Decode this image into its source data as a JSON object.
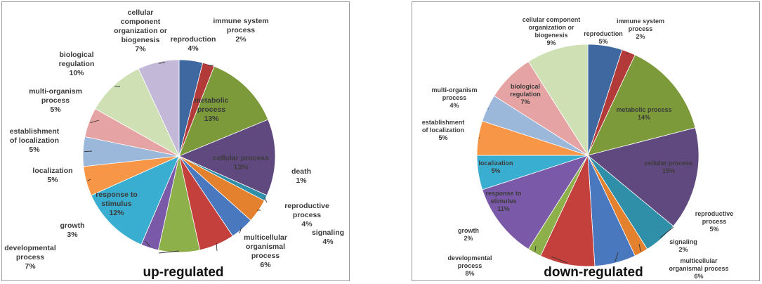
{
  "chart_data": [
    {
      "type": "pie",
      "title": "up-regulated",
      "categories": [
        "reproduction",
        "immune system process",
        "metabolic process",
        "cellular process",
        "death",
        "reproductive process",
        "signaling",
        "multicellular organismal process",
        "developmental process",
        "growth",
        "response to stimulus",
        "localization",
        "establishment of localization",
        "multi-organism process",
        "biological regulation",
        "cellular component organization or biogenesis"
      ],
      "values": [
        4,
        2,
        13,
        13,
        1,
        4,
        4,
        6,
        7,
        3,
        12,
        5,
        5,
        5,
        10,
        7
      ],
      "value_labels": [
        "4%",
        "2%",
        "13%",
        "13%",
        "1%",
        "4%",
        "4%",
        "6%",
        "7%",
        "3%",
        "12%",
        "5%",
        "5%",
        "5%",
        "10%",
        "7%"
      ],
      "colors": [
        "#3f67a0",
        "#b23a38",
        "#7c9a3a",
        "#60497f",
        "#2f8fa8",
        "#e4812e",
        "#4a78bf",
        "#c4403c",
        "#8db04a",
        "#7a5aa8",
        "#3aaed0",
        "#f79646",
        "#9bb7da",
        "#e6a3a3",
        "#cfe0b5",
        "#c3b8d8"
      ],
      "legend": "none (callout labels)"
    },
    {
      "type": "pie",
      "title": "down-regulated",
      "categories": [
        "reproduction",
        "immune system process",
        "metabolic process",
        "cellular process",
        "reproductive process",
        "signaling",
        "multicellular organismal process",
        "developmental process",
        "growth",
        "response to stimulus",
        "localization",
        "establishment of localization",
        "multi-organism process",
        "biological regulation",
        "cellular component organization or biogenesis"
      ],
      "values": [
        5,
        2,
        14,
        15,
        5,
        2,
        6,
        8,
        2,
        11,
        5,
        5,
        4,
        7,
        9
      ],
      "value_labels": [
        "5%",
        "2%",
        "14%",
        "15%",
        "5%",
        "2%",
        "6%",
        "8%",
        "2%",
        "11%",
        "5%",
        "5%",
        "4%",
        "7%",
        "9%"
      ],
      "colors": [
        "#3f67a0",
        "#b23a38",
        "#7c9a3a",
        "#60497f",
        "#2f8fa8",
        "#e4812e",
        "#4a78bf",
        "#c4403c",
        "#8db04a",
        "#7a5aa8",
        "#3aaed0",
        "#f79646",
        "#9bb7da",
        "#e6a3a3",
        "#cfe0b5"
      ],
      "legend": "none (callout labels)"
    }
  ],
  "labels_up": [
    [
      "reproduction",
      "4%"
    ],
    [
      "immune system",
      "process",
      "2%"
    ],
    [
      "metabolic",
      "process",
      "13%"
    ],
    [
      "cellular process",
      "13%"
    ],
    [
      "death",
      "1%"
    ],
    [
      "reproductive",
      "process",
      "4%"
    ],
    [
      "signaling",
      "4%"
    ],
    [
      "multicellular",
      "organismal",
      "process",
      "6%"
    ],
    [
      "developmental",
      "process",
      "7%"
    ],
    [
      "growth",
      "3%"
    ],
    [
      "response to",
      "stimulus",
      "12%"
    ],
    [
      "localization",
      "5%"
    ],
    [
      "establishment",
      "of localization",
      "5%"
    ],
    [
      "multi-organism",
      "process",
      "5%"
    ],
    [
      "biological",
      "regulation",
      "10%"
    ],
    [
      "cellular",
      "component",
      "organization or",
      "biogenesis",
      "7%"
    ]
  ],
  "labels_down": [
    [
      "reproduction",
      "5%"
    ],
    [
      "immune system",
      "process",
      "2%"
    ],
    [
      "metabolic process",
      "14%"
    ],
    [
      "cellular process",
      "15%"
    ],
    [
      "reproductive",
      "process",
      "5%"
    ],
    [
      "signaling",
      "2%"
    ],
    [
      "multicellular",
      "organismal process",
      "6%"
    ],
    [
      "developmental",
      "process",
      "8%"
    ],
    [
      "growth",
      "2%"
    ],
    [
      "response to",
      "stimulus",
      "11%"
    ],
    [
      "localization",
      "5%"
    ],
    [
      "establishment",
      "of localization",
      "5%"
    ],
    [
      "multi-organism",
      "process",
      "4%"
    ],
    [
      "biological",
      "regulation",
      "7%"
    ],
    [
      "cellular component",
      "organization or",
      "biogenesis",
      "9%"
    ]
  ]
}
